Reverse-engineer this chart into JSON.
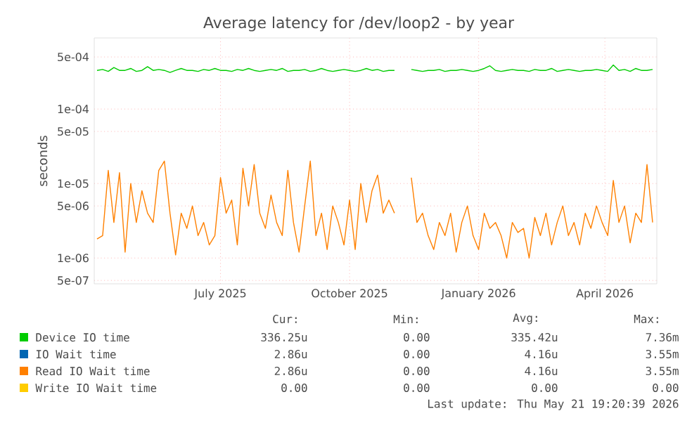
{
  "chart_data": {
    "type": "line",
    "title": "Average latency for /dev/loop2 - by year",
    "ylabel": "seconds",
    "log": "y",
    "grid": true,
    "legend": "bottom",
    "xlim": [
      "2025-04-02",
      "2026-05-08"
    ],
    "ylim": [
      4.5e-07,
      0.0009
    ],
    "xticks": [
      {
        "value": "2025-07-01",
        "label": "July 2025"
      },
      {
        "value": "2025-10-01",
        "label": "October 2025"
      },
      {
        "value": "2026-01-01",
        "label": "January 2026"
      },
      {
        "value": "2026-04-01",
        "label": "April 2026"
      }
    ],
    "yticks": [
      {
        "value": 0.0005,
        "label": "5e-04"
      },
      {
        "value": 0.0001,
        "label": "1e-04"
      },
      {
        "value": 5e-05,
        "label": "5e-05"
      },
      {
        "value": 1e-05,
        "label": "1e-05"
      },
      {
        "value": 5e-06,
        "label": "5e-06"
      },
      {
        "value": 1e-06,
        "label": "1e-06"
      },
      {
        "value": 5e-07,
        "label": "5e-07"
      }
    ],
    "x": [
      "2025-04-04",
      "2025-04-08",
      "2025-04-12",
      "2025-04-16",
      "2025-04-20",
      "2025-04-24",
      "2025-04-28",
      "2025-05-02",
      "2025-05-06",
      "2025-05-10",
      "2025-05-14",
      "2025-05-18",
      "2025-05-22",
      "2025-05-26",
      "2025-05-30",
      "2025-06-03",
      "2025-06-07",
      "2025-06-11",
      "2025-06-15",
      "2025-06-19",
      "2025-06-23",
      "2025-06-27",
      "2025-07-01",
      "2025-07-05",
      "2025-07-09",
      "2025-07-13",
      "2025-07-17",
      "2025-07-21",
      "2025-07-25",
      "2025-07-29",
      "2025-08-02",
      "2025-08-06",
      "2025-08-10",
      "2025-08-14",
      "2025-08-18",
      "2025-08-22",
      "2025-08-26",
      "2025-08-30",
      "2025-09-03",
      "2025-09-07",
      "2025-09-11",
      "2025-09-15",
      "2025-09-19",
      "2025-09-23",
      "2025-09-27",
      "2025-10-01",
      "2025-10-05",
      "2025-10-09",
      "2025-10-13",
      "2025-10-17",
      "2025-10-21",
      "2025-10-25",
      "2025-10-29",
      "2025-11-02",
      "2025-11-06",
      "2025-11-10",
      "2025-11-14",
      "2025-11-18",
      "2025-11-22",
      "2025-11-26",
      "2025-11-30",
      "2025-12-04",
      "2025-12-08",
      "2025-12-12",
      "2025-12-16",
      "2025-12-20",
      "2025-12-24",
      "2025-12-28",
      "2026-01-01",
      "2026-01-05",
      "2026-01-09",
      "2026-01-13",
      "2026-01-17",
      "2026-01-21",
      "2026-01-25",
      "2026-01-29",
      "2026-02-02",
      "2026-02-06",
      "2026-02-10",
      "2026-02-14",
      "2026-02-18",
      "2026-02-22",
      "2026-02-26",
      "2026-03-02",
      "2026-03-06",
      "2026-03-10",
      "2026-03-14",
      "2026-03-18",
      "2026-03-22",
      "2026-03-26",
      "2026-03-30",
      "2026-04-03",
      "2026-04-07",
      "2026-04-11",
      "2026-04-15",
      "2026-04-19",
      "2026-04-23",
      "2026-04-27",
      "2026-05-01",
      "2026-05-05"
    ],
    "series": [
      {
        "name": "Device IO time",
        "color": "#00cc00",
        "values": [
          0.00033,
          0.00034,
          0.00032,
          0.00036,
          0.00033,
          0.00033,
          0.00035,
          0.00032,
          0.00033,
          0.00037,
          0.00033,
          0.00034,
          0.00033,
          0.00031,
          0.00033,
          0.00035,
          0.00033,
          0.00033,
          0.00032,
          0.00034,
          0.00033,
          0.00035,
          0.00033,
          0.00033,
          0.00032,
          0.00034,
          0.00033,
          0.00035,
          0.00033,
          0.00032,
          0.00033,
          0.00034,
          0.00033,
          0.00035,
          0.00032,
          0.00033,
          0.00033,
          0.00034,
          0.00032,
          0.00033,
          0.00035,
          0.00033,
          0.00032,
          0.00033,
          0.00034,
          0.00033,
          0.00032,
          0.00033,
          0.00035,
          0.00033,
          0.00034,
          0.00032,
          0.00033,
          0.00033,
          null,
          null,
          0.00034,
          0.00033,
          0.00032,
          0.00033,
          0.00033,
          0.00034,
          0.00032,
          0.00033,
          0.00033,
          0.00034,
          0.00033,
          0.00032,
          0.00033,
          0.00035,
          0.00038,
          0.00033,
          0.00032,
          0.00033,
          0.00034,
          0.00033,
          0.00033,
          0.00032,
          0.00034,
          0.00033,
          0.00033,
          0.00035,
          0.00032,
          0.00033,
          0.00034,
          0.00033,
          0.00032,
          0.00033,
          0.00033,
          0.00034,
          0.00033,
          0.00032,
          0.00039,
          0.00033,
          0.00034,
          0.00032,
          0.00035,
          0.00033,
          0.00033,
          0.00034
        ]
      },
      {
        "name": "IO Wait time",
        "color": "#0066b3",
        "values": [
          null,
          null,
          null,
          null,
          null,
          null,
          null,
          null,
          null,
          null,
          null,
          null,
          null,
          null,
          null,
          null,
          null,
          null,
          null,
          null,
          null,
          null,
          null,
          null,
          null,
          null,
          null,
          null,
          null,
          null,
          null,
          null,
          null,
          null,
          null,
          null,
          null,
          null,
          null,
          null,
          null,
          null,
          null,
          null,
          null,
          null,
          null,
          null,
          null,
          null,
          null,
          null,
          null,
          null,
          null,
          null,
          null,
          null,
          null,
          null,
          null,
          null,
          null,
          null,
          null,
          null,
          null,
          null,
          null,
          null,
          null,
          null,
          null,
          null,
          null,
          null,
          null,
          null,
          null,
          null,
          null,
          null,
          null,
          null,
          null,
          null,
          null,
          null,
          null,
          null,
          null,
          null,
          null,
          null,
          null,
          null,
          null,
          null,
          null,
          null
        ]
      },
      {
        "name": "Read IO Wait time",
        "color": "#ff8000",
        "values": [
          1.8e-06,
          2e-06,
          1.5e-05,
          3e-06,
          1.4e-05,
          1.2e-06,
          1e-05,
          3e-06,
          8e-06,
          4e-06,
          3e-06,
          1.5e-05,
          2e-05,
          4e-06,
          1.1e-06,
          4e-06,
          2.5e-06,
          5e-06,
          2e-06,
          3e-06,
          1.5e-06,
          2e-06,
          1.2e-05,
          4e-06,
          6e-06,
          1.5e-06,
          1.6e-05,
          5e-06,
          1.8e-05,
          4e-06,
          2.5e-06,
          7e-06,
          3e-06,
          2e-06,
          1.5e-05,
          3e-06,
          1.2e-06,
          5e-06,
          2e-05,
          2e-06,
          4e-06,
          1.3e-06,
          5e-06,
          3e-06,
          1.5e-06,
          6e-06,
          1.3e-06,
          1e-05,
          3e-06,
          8e-06,
          1.3e-05,
          4e-06,
          6e-06,
          4e-06,
          null,
          null,
          1.2e-05,
          3e-06,
          4e-06,
          2e-06,
          1.3e-06,
          3e-06,
          2e-06,
          4e-06,
          1.2e-06,
          3e-06,
          5e-06,
          2e-06,
          1.3e-06,
          4e-06,
          2.5e-06,
          3e-06,
          2e-06,
          1e-06,
          3e-06,
          2.2e-06,
          2.5e-06,
          1e-06,
          3.5e-06,
          2e-06,
          4e-06,
          1.5e-06,
          3e-06,
          5e-06,
          2e-06,
          3e-06,
          1.5e-06,
          4e-06,
          2.5e-06,
          5e-06,
          3e-06,
          2e-06,
          1.1e-05,
          3e-06,
          5e-06,
          1.6e-06,
          4e-06,
          3e-06,
          1.8e-05,
          3e-06
        ]
      },
      {
        "name": "Write IO Wait time",
        "color": "#ffcc00",
        "values": [
          null,
          null,
          null,
          null,
          null,
          null,
          null,
          null,
          null,
          null,
          null,
          null,
          null,
          null,
          null,
          null,
          null,
          null,
          null,
          null,
          null,
          null,
          null,
          null,
          null,
          null,
          null,
          null,
          null,
          null,
          null,
          null,
          null,
          null,
          null,
          null,
          null,
          null,
          null,
          null,
          null,
          null,
          null,
          null,
          null,
          null,
          null,
          null,
          null,
          null,
          null,
          null,
          null,
          null,
          null,
          null,
          null,
          null,
          null,
          null,
          null,
          null,
          null,
          null,
          null,
          null,
          null,
          null,
          null,
          null,
          null,
          null,
          null,
          null,
          null,
          null,
          null,
          null,
          null,
          null,
          null,
          null,
          null,
          null,
          null,
          null,
          null,
          null,
          null,
          null,
          null,
          null,
          null,
          null,
          null,
          null,
          null,
          null,
          null,
          null
        ]
      }
    ],
    "annotations": [
      "Cur:",
      "Min:",
      "Avg:",
      "Max:",
      "336.25u",
      "0.00",
      "335.42u",
      "7.36m",
      "2.86u",
      "0.00",
      "4.16u",
      "3.55m",
      "2.86u",
      "0.00",
      "4.16u",
      "3.55m",
      "0.00",
      "0.00",
      "0.00",
      "0.00",
      "Last update: Thu May 21 19:20:39 2026"
    ]
  }
}
